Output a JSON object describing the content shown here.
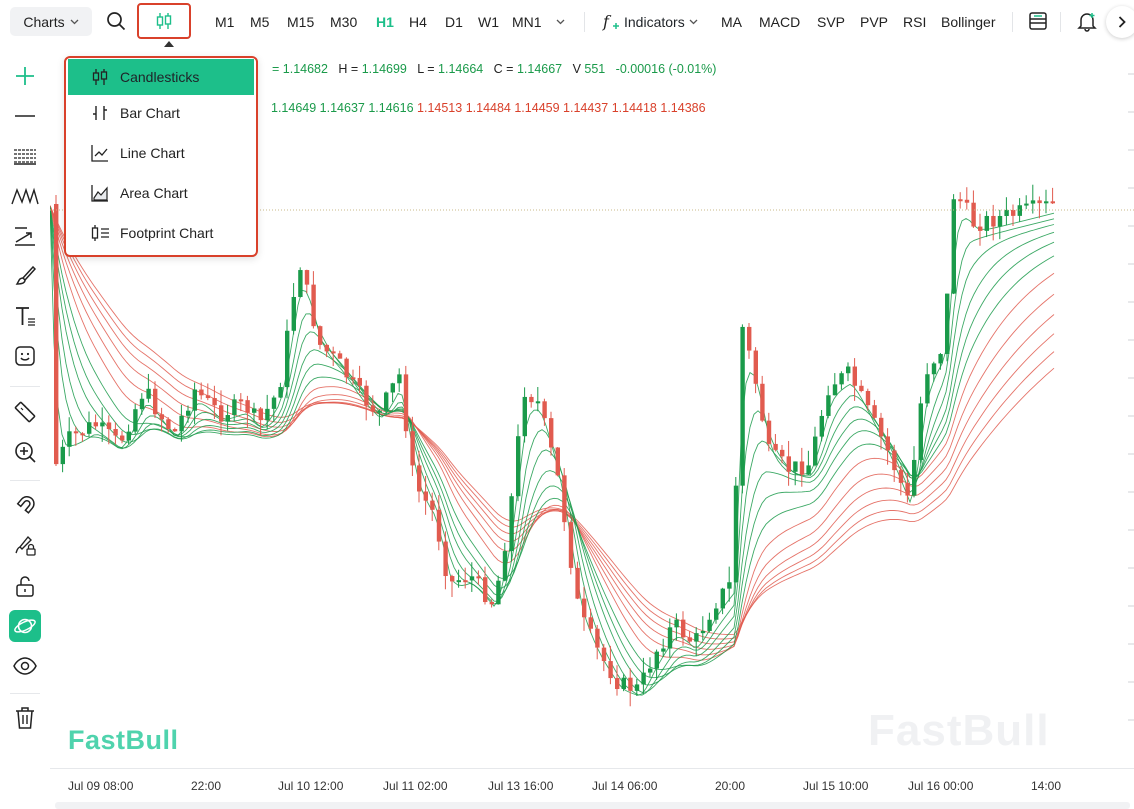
{
  "toolbar": {
    "charts_label": "Charts",
    "timeframes": [
      "M1",
      "M5",
      "M15",
      "M30",
      "H1",
      "H4",
      "D1",
      "W1",
      "MN1"
    ],
    "active_timeframe": "H1",
    "indicators_label": "Indicators",
    "indicator_buttons": [
      "MA",
      "MACD",
      "SVP",
      "PVP",
      "RSI",
      "Bollinger"
    ]
  },
  "chart_type_menu": {
    "items": [
      {
        "label": "Candlesticks",
        "icon": "candlestick-icon",
        "selected": true
      },
      {
        "label": "Bar Chart",
        "icon": "bar-chart-icon",
        "selected": false
      },
      {
        "label": "Line Chart",
        "icon": "line-chart-icon",
        "selected": false
      },
      {
        "label": "Area Chart",
        "icon": "area-chart-icon",
        "selected": false
      },
      {
        "label": "Footprint Chart",
        "icon": "footprint-chart-icon",
        "selected": false
      }
    ]
  },
  "legend": {
    "ohlc": {
      "o_tail": "= 1.14682",
      "h_label": "H =",
      "h": "1.14699",
      "l_label": "L =",
      "l": "1.14664",
      "c_label": "C =",
      "c": "1.14667",
      "v_label": "V",
      "v": "551",
      "change": "-0.00016 (-0.01%)"
    },
    "ma_values_green": [
      "1.14649",
      "1.14637",
      "1.14616"
    ],
    "ma_values_red": [
      "1.14513",
      "1.14484",
      "1.14459",
      "1.14437",
      "1.14418",
      "1.14386"
    ]
  },
  "watermark": {
    "brand": "FastBull"
  },
  "time_axis": {
    "ticks": [
      "Jul 09 08:00",
      "22:00",
      "Jul 10 12:00",
      "Jul 11 02:00",
      "Jul 13 16:00",
      "Jul 14 06:00",
      "20:00",
      "Jul 15 10:00",
      "Jul 16 00:00",
      "14:00"
    ]
  },
  "colors": {
    "accent": "#1dbf8a",
    "up": "#1a9a4a",
    "down": "#e15b4f",
    "highlight": "#d9412b"
  },
  "left_tools": [
    "crosshair-icon",
    "horizontal-line-icon",
    "fib-icon",
    "pattern-icon",
    "trend-arrow-icon",
    "brush-icon",
    "text-icon",
    "emoji-icon",
    "ruler-icon",
    "zoom-in-icon",
    "magnet-icon",
    "lock-drawing-icon",
    "unlock-icon",
    "visibility-planet-icon",
    "eye-icon",
    "trash-icon"
  ]
}
